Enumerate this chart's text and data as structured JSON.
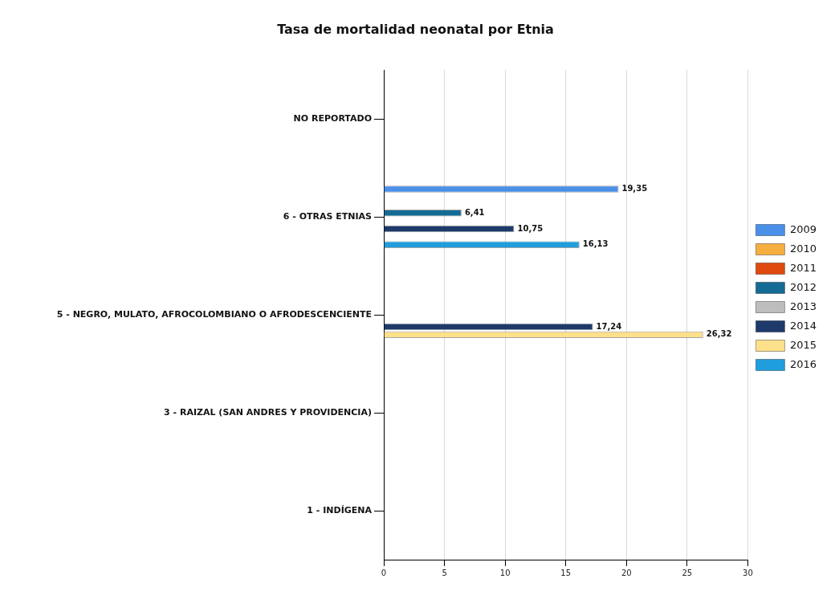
{
  "chart_data": {
    "type": "bar",
    "orientation": "horizontal",
    "title": "Tasa de mortalidad neonatal por Etnia",
    "categories": [
      "NO REPORTADO",
      "6 - OTRAS ETNIAS",
      "5 - NEGRO, MULATO, AFROCOLOMBIANO O AFRODESCENCIENTE",
      "3 - RAIZAL (SAN ANDRES Y PROVIDENCIA)",
      "1 - INDÍGENA"
    ],
    "series": [
      {
        "name": "2009",
        "color": "#4a8fe8",
        "values": [
          null,
          19.35,
          null,
          null,
          null
        ],
        "value_labels": [
          null,
          "19,35",
          null,
          null,
          null
        ]
      },
      {
        "name": "2010",
        "color": "#f6ae3f",
        "values": [
          null,
          null,
          null,
          null,
          null
        ]
      },
      {
        "name": "2011",
        "color": "#e04a0e",
        "values": [
          null,
          null,
          null,
          null,
          null
        ]
      },
      {
        "name": "2012",
        "color": "#146b94",
        "values": [
          null,
          6.41,
          null,
          null,
          null
        ],
        "value_labels": [
          null,
          "6,41",
          null,
          null,
          null
        ]
      },
      {
        "name": "2013",
        "color": "#bdbdbd",
        "values": [
          null,
          null,
          null,
          null,
          null
        ]
      },
      {
        "name": "2014",
        "color": "#1d3a6b",
        "values": [
          null,
          10.75,
          17.24,
          null,
          null
        ],
        "value_labels": [
          null,
          "10,75",
          "17,24",
          null,
          null
        ]
      },
      {
        "name": "2015",
        "color": "#fde08a",
        "values": [
          null,
          null,
          26.32,
          null,
          null
        ],
        "value_labels": [
          null,
          null,
          "26,32",
          null,
          null
        ]
      },
      {
        "name": "2016",
        "color": "#1f9ddd",
        "values": [
          null,
          16.13,
          null,
          null,
          null
        ],
        "value_labels": [
          null,
          "16,13",
          null,
          null,
          null
        ]
      }
    ],
    "xlim": [
      0,
      30
    ],
    "xticks": [
      0,
      5,
      10,
      15,
      20,
      25,
      30
    ],
    "grid": "x",
    "legend": "right"
  }
}
